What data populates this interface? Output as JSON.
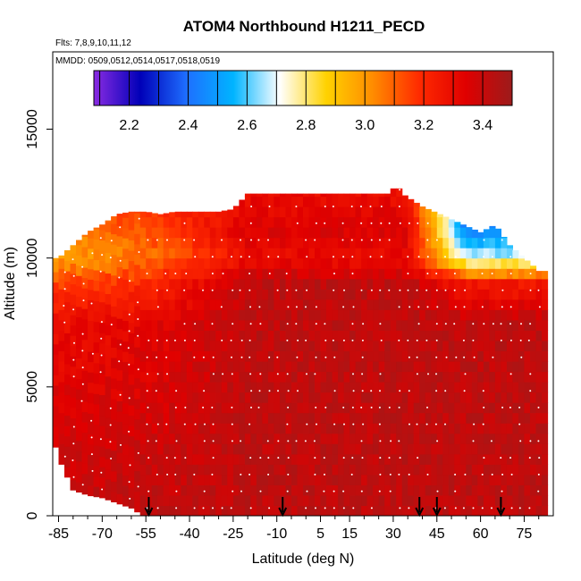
{
  "chart_data": {
    "type": "heatmap",
    "title": "ATOM4 Northbound H1211_PECD",
    "flights_label": "Flts: 7,8,9,10,11,12",
    "dates_label": "MMDD: 0509,0512,0514,0517,0518,0519",
    "xlabel": "Latitude (deg N)",
    "ylabel": "Altitude (m)",
    "xlim": [
      -87,
      85
    ],
    "ylim": [
      0,
      18000
    ],
    "x_ticks": [
      -85,
      -70,
      -55,
      -40,
      -25,
      -10,
      5,
      15,
      30,
      45,
      60,
      75
    ],
    "x_minor_ticks": [
      -80,
      -75,
      -65,
      -60,
      -50,
      -45,
      -35,
      -30,
      -20,
      -15,
      -5,
      0,
      10,
      20,
      25,
      35,
      40,
      50,
      55,
      65,
      70,
      80
    ],
    "y_ticks": [
      0,
      5000,
      10000,
      15000
    ],
    "colorbar": {
      "range": [
        2.08,
        3.5
      ],
      "ticks": [
        "2.2",
        "2.4",
        "2.6",
        "2.8",
        "3.0",
        "3.2",
        "3.4"
      ],
      "tick_values": [
        2.2,
        2.4,
        2.6,
        2.8,
        3.0,
        3.2,
        3.4
      ],
      "colors": [
        "#8a2be2",
        "#0000b8",
        "#1e6fff",
        "#00b4ff",
        "#ffffff",
        "#ffd200",
        "#ff8c00",
        "#ff2a00",
        "#e00000",
        "#9c1b1b"
      ]
    },
    "arrow_latitudes": [
      -54,
      -8,
      39,
      45,
      67
    ],
    "column_tops": [
      {
        "lat": -85,
        "top": 10000
      },
      {
        "lat": -80,
        "top": 10500
      },
      {
        "lat": -75,
        "top": 11000
      },
      {
        "lat": -70,
        "top": 11300
      },
      {
        "lat": -65,
        "top": 11700
      },
      {
        "lat": -60,
        "top": 11800
      },
      {
        "lat": -55,
        "top": 11800
      },
      {
        "lat": -50,
        "top": 11700
      },
      {
        "lat": -45,
        "top": 11800
      },
      {
        "lat": -40,
        "top": 11800
      },
      {
        "lat": -35,
        "top": 11800
      },
      {
        "lat": -30,
        "top": 11800
      },
      {
        "lat": -25,
        "top": 11900
      },
      {
        "lat": -20,
        "top": 12500
      },
      {
        "lat": -10,
        "top": 12500
      },
      {
        "lat": 0,
        "top": 12500
      },
      {
        "lat": 10,
        "top": 12500
      },
      {
        "lat": 20,
        "top": 12500
      },
      {
        "lat": 29,
        "top": 12500
      },
      {
        "lat": 31,
        "top": 12900
      },
      {
        "lat": 33,
        "top": 12500
      },
      {
        "lat": 40,
        "top": 12000
      },
      {
        "lat": 50,
        "top": 11500
      },
      {
        "lat": 60,
        "top": 11000
      },
      {
        "lat": 65,
        "top": 11300
      },
      {
        "lat": 70,
        "top": 10500
      },
      {
        "lat": 75,
        "top": 10000
      },
      {
        "lat": 80,
        "top": 9500
      },
      {
        "lat": 82,
        "top": 9500
      }
    ],
    "column_bottoms": [
      {
        "lat": -87,
        "bottom": 3000
      },
      {
        "lat": -84,
        "bottom": 2000
      },
      {
        "lat": -80,
        "bottom": 1000
      },
      {
        "lat": -75,
        "bottom": 800
      },
      {
        "lat": -70,
        "bottom": 700
      },
      {
        "lat": -65,
        "bottom": 500
      },
      {
        "lat": -60,
        "bottom": 300
      },
      {
        "lat": -56,
        "bottom": 0
      },
      {
        "lat": 82,
        "bottom": 0
      }
    ],
    "profile": [
      {
        "alt": 0,
        "lat_profile": [
          3.42,
          3.42,
          3.42
        ]
      },
      {
        "alt": 7500,
        "lat_profile": [
          3.3,
          3.42,
          3.42
        ]
      },
      {
        "alt": 9000,
        "lat_profile": [
          3.15,
          3.42,
          3.25
        ]
      },
      {
        "alt": 10000,
        "lat_profile": [
          3.0,
          3.3,
          2.7
        ]
      },
      {
        "alt": 11000,
        "lat_profile": [
          3.05,
          3.35,
          2.45
        ]
      },
      {
        "alt": 12500,
        "lat_profile": [
          3.2,
          3.3,
          2.3
        ]
      }
    ]
  }
}
